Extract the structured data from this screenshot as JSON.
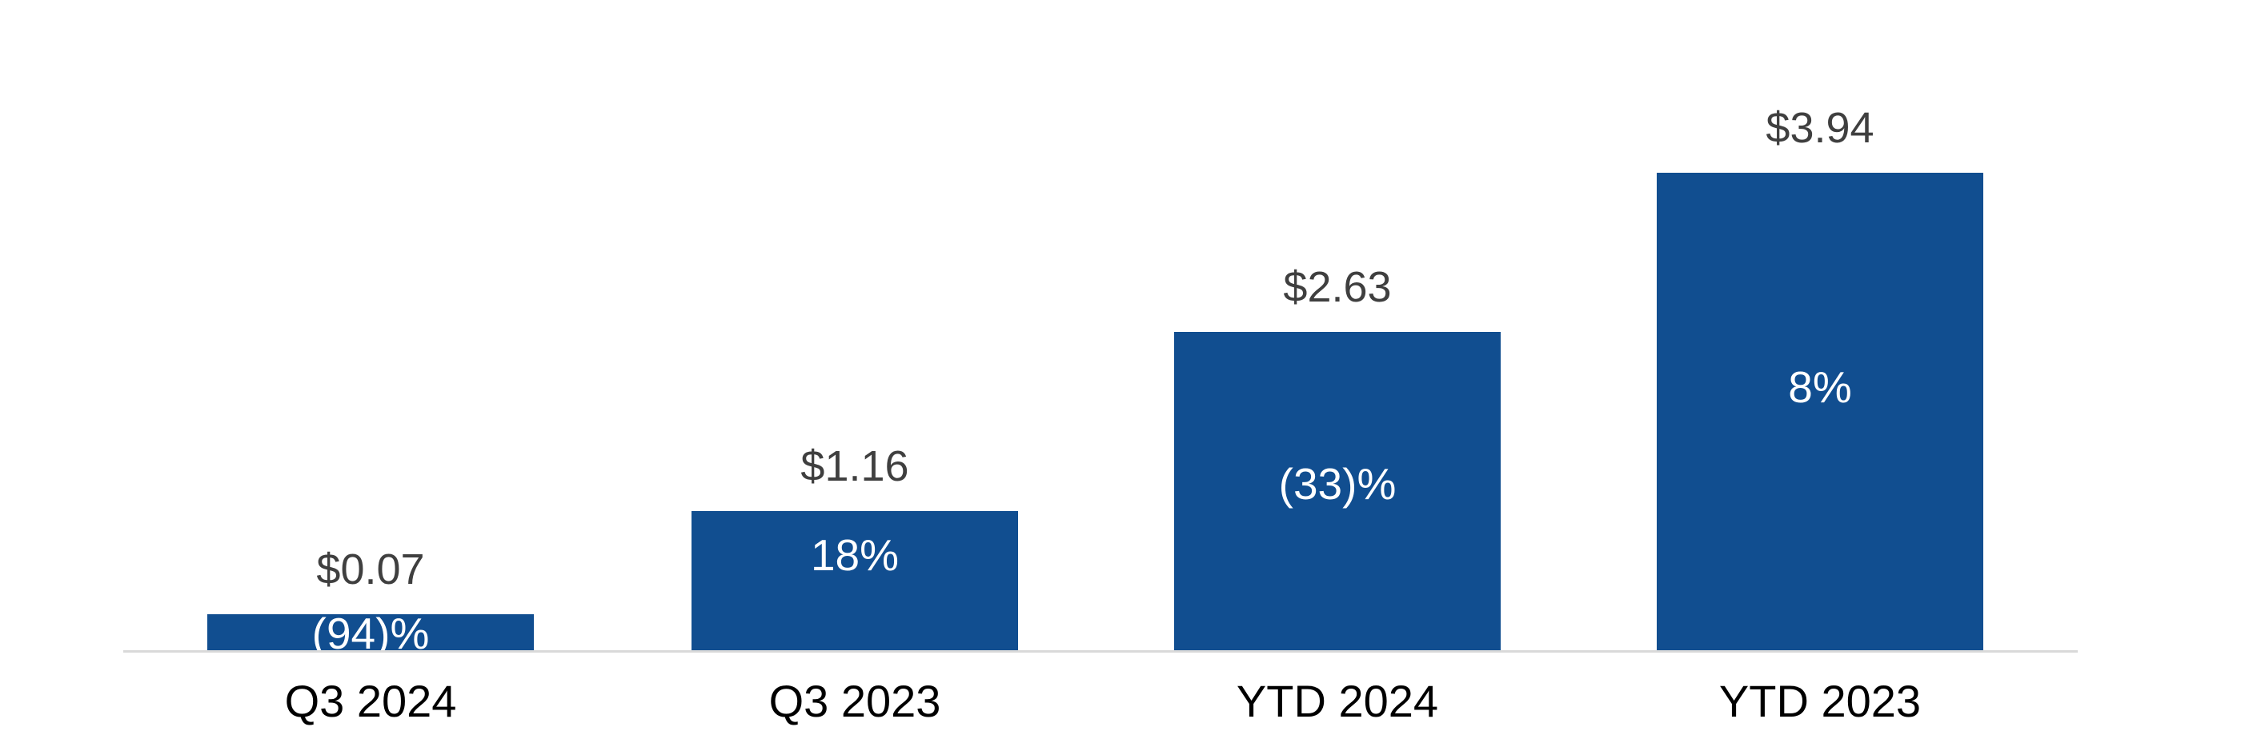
{
  "chart_data": {
    "type": "bar",
    "categories": [
      "Q3 2024",
      "Q3 2023",
      "YTD 2024",
      "YTD 2023"
    ],
    "values": [
      0.07,
      1.16,
      2.63,
      3.94
    ],
    "value_labels": [
      "$0.07",
      "$1.16",
      "$2.63",
      "$3.94"
    ],
    "pct_labels": [
      "(94)%",
      "18%",
      "(33)%",
      "8%"
    ],
    "pct_changes": [
      -94,
      18,
      -33,
      8
    ],
    "xlabel": "",
    "ylabel": "",
    "ylim": [
      0,
      4.5
    ],
    "grid": false,
    "legend": false,
    "bar_color": "#114e90",
    "value_label_color": "#3f3f3f",
    "pct_label_color": "#ffffff",
    "category_label_color": "#000000",
    "axis_line_color": "#d9d9d9"
  }
}
